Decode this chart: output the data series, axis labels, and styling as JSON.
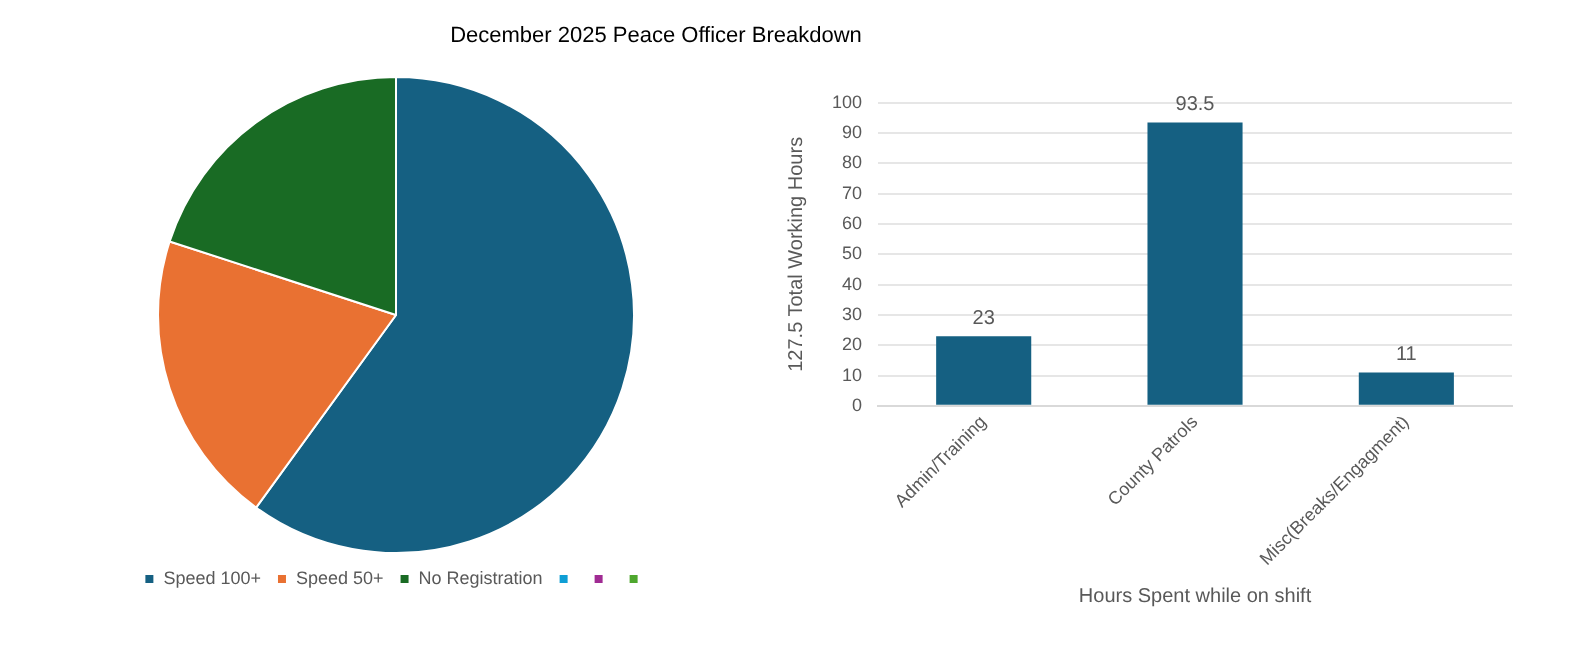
{
  "chart_data": [
    {
      "type": "pie",
      "title": "December 2025 Peace Officer Breakdown",
      "categories": [
        "Speed 100+",
        "Speed 50+",
        "No Registration",
        null,
        null,
        null
      ],
      "values": [
        60,
        20,
        20,
        0,
        0,
        0
      ],
      "colors": [
        "#156082",
        "#e97132",
        "#196b24",
        "#0f9ed5",
        "#a02b93",
        "#4ea72e"
      ],
      "legend": "bottom"
    },
    {
      "type": "bar",
      "categories": [
        "Admin/Training",
        "County Patrols",
        "Misc(Breaks/Engagment)"
      ],
      "values": [
        23,
        93.5,
        11
      ],
      "color": "#156082",
      "xlabel": "Hours Spent while on shift",
      "ylabel": "127.5 Total Working Hours",
      "ylim": [
        0,
        100
      ],
      "yticks": [
        0,
        10,
        20,
        30,
        40,
        50,
        60,
        70,
        80,
        90,
        100
      ],
      "grid": "y",
      "data_labels": true,
      "legend": false
    }
  ]
}
